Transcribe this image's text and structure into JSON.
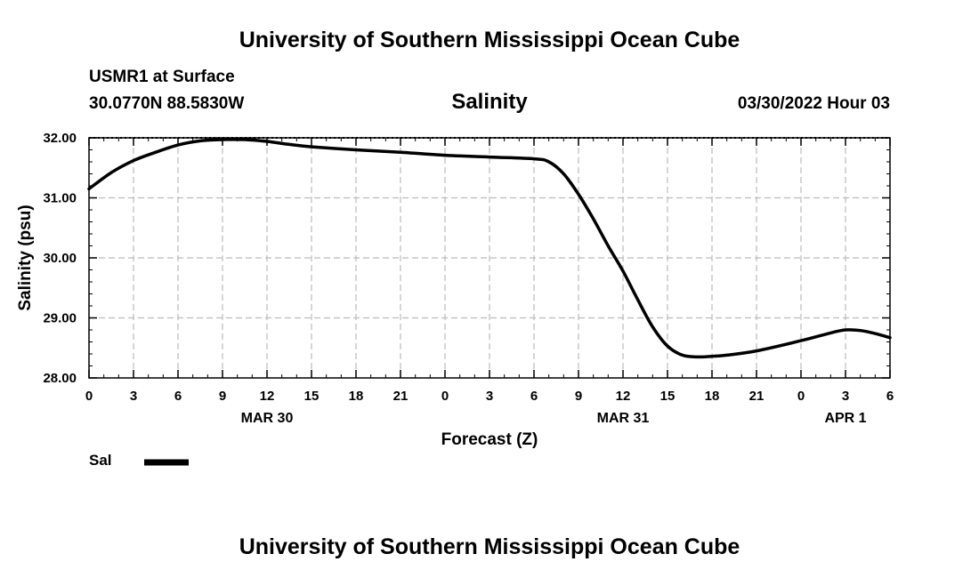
{
  "header": {
    "title": "University of Southern Mississippi Ocean Cube",
    "station": "USMR1 at Surface",
    "coords": "30.0770N  88.5830W",
    "chart_title": "Salinity",
    "datetime": "03/30/2022 Hour 03"
  },
  "footer": {
    "title": "University of Southern Mississippi Ocean Cube"
  },
  "legend": {
    "label": "Sal"
  },
  "colors": {
    "line": "#000000",
    "grid": "#bbbbbb"
  },
  "chart_data": {
    "type": "line",
    "title": "Salinity",
    "xlabel": "Forecast (Z)",
    "ylabel": "Salinity (psu)",
    "xlim": [
      0,
      54
    ],
    "ylim": [
      28.0,
      32.0
    ],
    "x_ticks": [
      0,
      3,
      6,
      9,
      12,
      15,
      18,
      21,
      24,
      27,
      30,
      33,
      36,
      39,
      42,
      45,
      48,
      51,
      54
    ],
    "x_tick_labels": [
      "0",
      "3",
      "6",
      "9",
      "12",
      "15",
      "18",
      "21",
      "0",
      "3",
      "6",
      "9",
      "12",
      "15",
      "18",
      "21",
      "0",
      "3",
      "6"
    ],
    "day_labels": [
      {
        "x": 12,
        "label": "MAR 30"
      },
      {
        "x": 36,
        "label": "MAR 31"
      },
      {
        "x": 51,
        "label": "APR 1"
      }
    ],
    "y_ticks": [
      28.0,
      29.0,
      30.0,
      31.0,
      32.0
    ],
    "y_tick_labels": [
      "28.00",
      "29.00",
      "30.00",
      "31.00",
      "32.00"
    ],
    "grid": true,
    "series": [
      {
        "name": "Sal",
        "x": [
          0,
          1.5,
          3,
          4.5,
          6,
          7.5,
          9,
          10.5,
          12,
          13.5,
          15,
          18,
          21,
          24,
          27,
          30,
          31,
          32,
          33,
          34,
          35,
          36,
          37,
          38,
          39,
          40,
          41,
          42,
          43,
          45,
          48,
          50,
          51,
          52,
          53,
          54
        ],
        "values": [
          31.15,
          31.42,
          31.62,
          31.76,
          31.88,
          31.95,
          31.97,
          31.97,
          31.94,
          31.89,
          31.85,
          31.8,
          31.76,
          31.71,
          31.68,
          31.65,
          31.6,
          31.4,
          31.06,
          30.65,
          30.2,
          29.78,
          29.3,
          28.85,
          28.53,
          28.38,
          28.35,
          28.36,
          28.38,
          28.45,
          28.62,
          28.75,
          28.8,
          28.79,
          28.74,
          28.67
        ]
      }
    ]
  }
}
